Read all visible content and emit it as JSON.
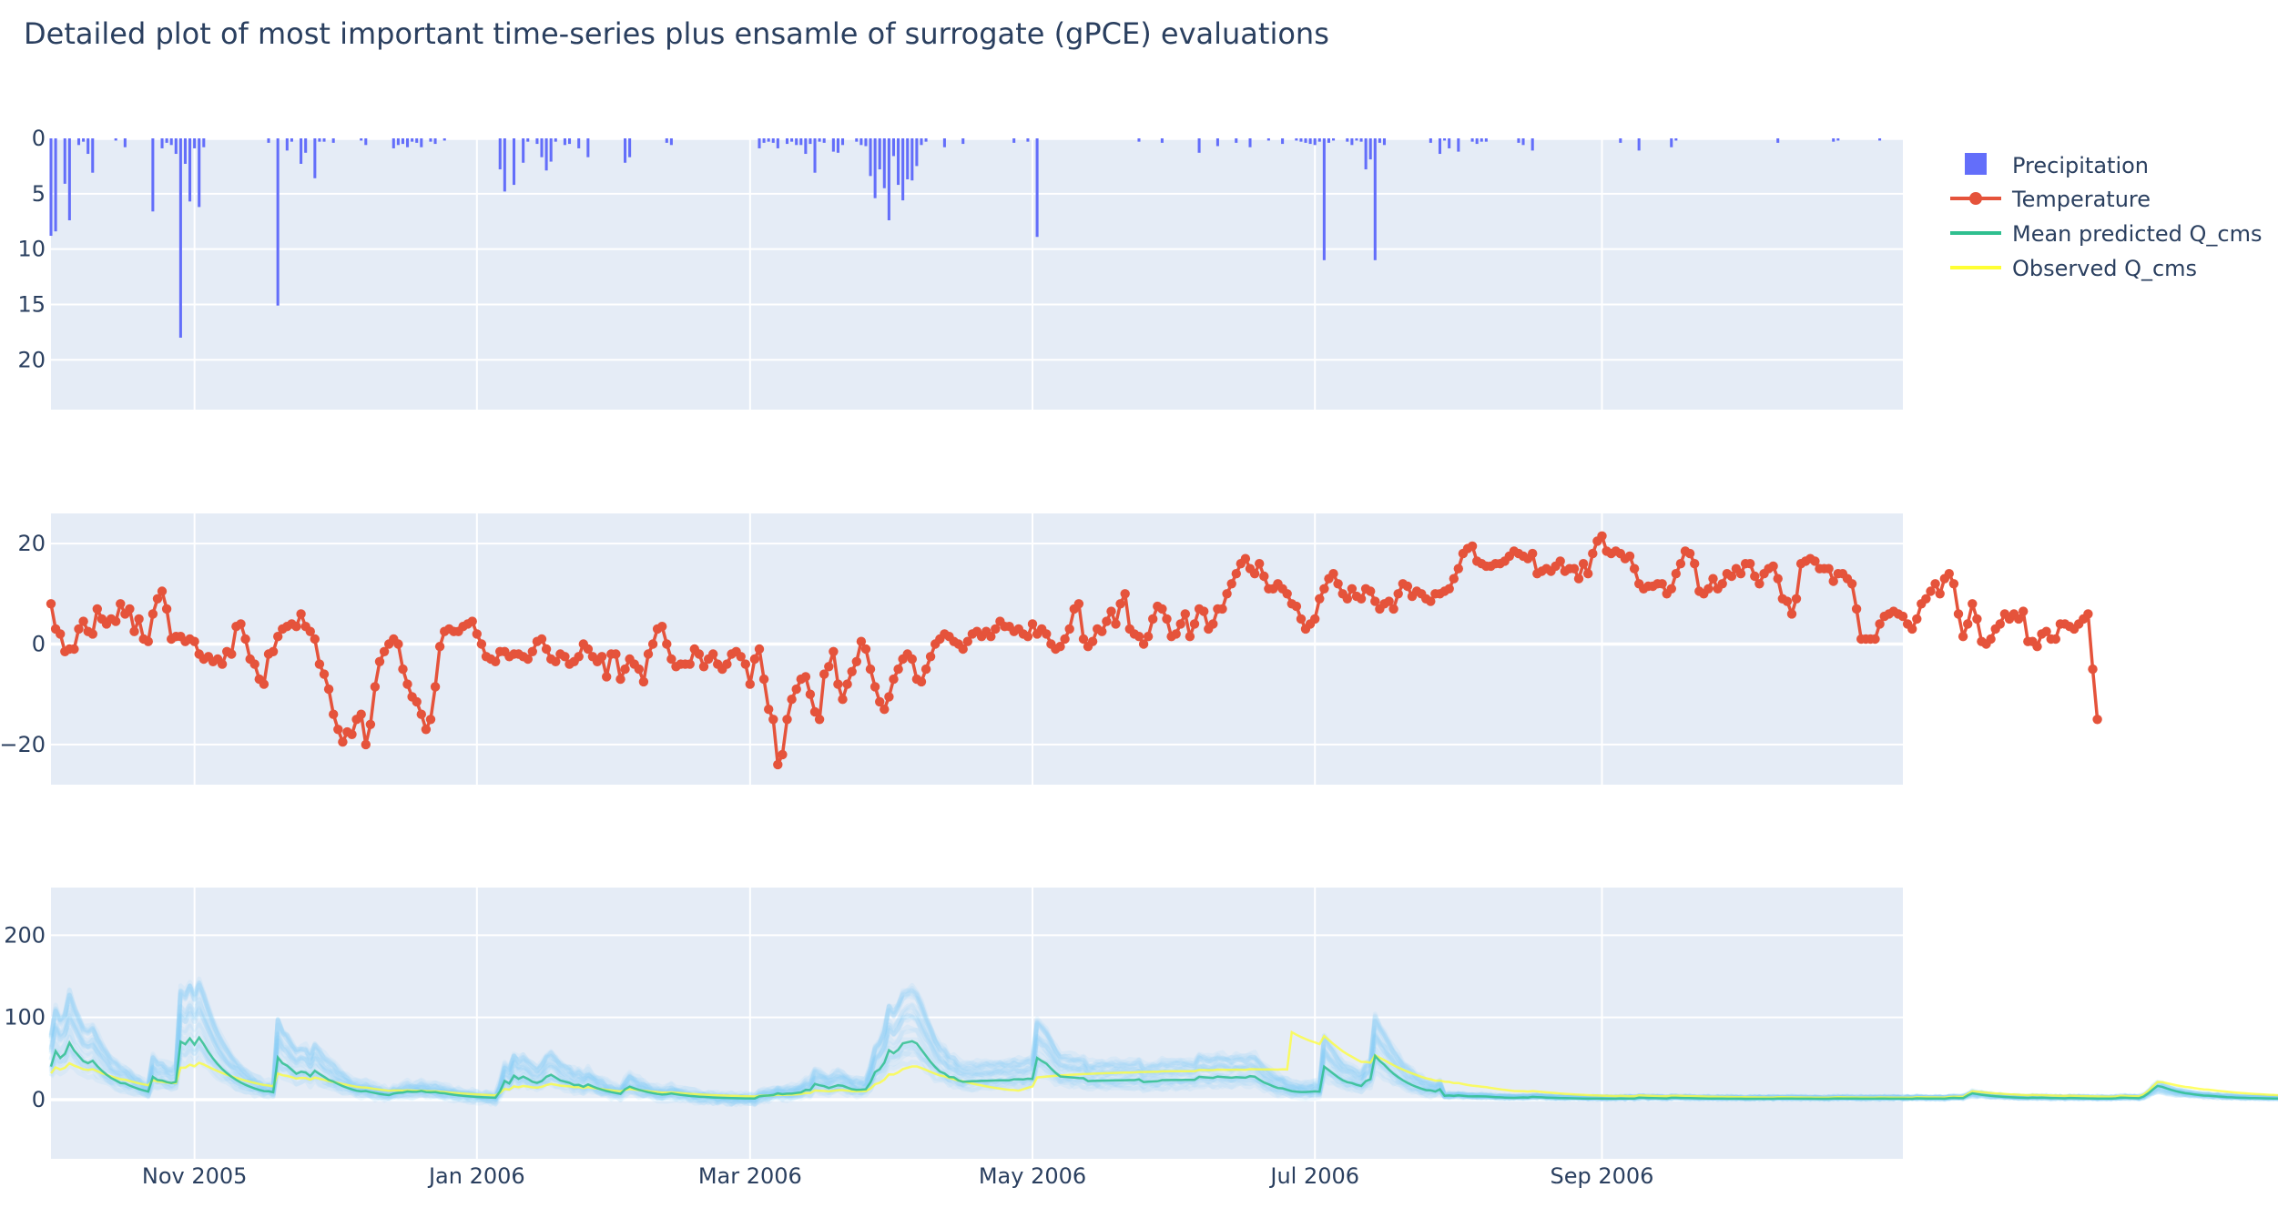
{
  "title": "Detailed plot of most important time-series plus ensamle of surrogate (gPCE) evaluations",
  "legend": {
    "placement": "top-right",
    "items": [
      {
        "name": "Precipitation",
        "symbol": "square",
        "color": "#636efa"
      },
      {
        "name": "Temperature",
        "symbol": "line-marker",
        "color": "#e5533b"
      },
      {
        "name": "Mean predicted Q_cms",
        "symbol": "line",
        "color": "#2fbf8f"
      },
      {
        "name": "Observed Q_cms",
        "symbol": "line",
        "color": "#ffff33"
      }
    ]
  },
  "colors": {
    "background": "#e5ecf6",
    "precipitation": "#636efa",
    "temperature": "#e5533b",
    "ensemble": "#87cefa",
    "mean_predicted": "#2fbf8f",
    "observed": "#ffff33"
  },
  "chart_data": [
    {
      "type": "bar",
      "name": "Precipitation",
      "start_date": "2005-10-01",
      "step_days": 1,
      "y_reversed": true,
      "ylim": [
        0,
        24.5
      ],
      "yticks": [
        0,
        5,
        10,
        15,
        20
      ],
      "values": [
        8.8,
        8.4,
        0,
        4.1,
        7.4,
        0,
        0.6,
        0.3,
        1.4,
        3.1,
        0,
        0,
        0,
        0,
        0.2,
        0,
        0.8,
        0,
        0,
        0,
        0,
        0,
        6.6,
        0,
        0.9,
        0.4,
        0.6,
        1.4,
        18,
        2.3,
        5.7,
        0.9,
        6.2,
        0.8,
        0,
        0,
        0,
        0,
        0,
        0,
        0,
        0,
        0,
        0,
        0,
        0,
        0,
        0.4,
        0,
        15.1,
        0,
        1.1,
        0.3,
        0,
        2.3,
        1.3,
        0,
        3.6,
        0.3,
        0.3,
        0,
        0.4,
        0,
        0,
        0,
        0,
        0,
        0.2,
        0.6,
        0,
        0,
        0,
        0,
        0,
        0.9,
        0.6,
        0.5,
        0.8,
        0.3,
        0.4,
        0.8,
        0,
        0.3,
        0.5,
        0,
        0.2,
        0,
        0,
        0,
        0,
        0,
        0,
        0,
        0,
        0,
        0,
        0,
        2.8,
        4.8,
        0,
        4.2,
        0,
        2.2,
        0.3,
        0,
        0.5,
        1.7,
        2.9,
        2.1,
        0.3,
        0,
        0.6,
        0.5,
        0,
        0.9,
        0,
        1.7,
        0,
        0,
        0,
        0,
        0,
        0,
        0,
        2.2,
        1.7,
        0,
        0,
        0,
        0,
        0,
        0,
        0,
        0.4,
        0.6,
        0,
        0,
        0,
        0,
        0,
        0,
        0,
        0,
        0,
        0,
        0,
        0,
        0,
        0,
        0,
        0,
        0,
        0,
        0.9,
        0.4,
        0.3,
        0.4,
        0.9,
        0,
        0.5,
        0.3,
        0.6,
        0.6,
        1.4,
        0.5,
        3.1,
        0.3,
        0.4,
        0,
        1.2,
        1.3,
        0.6,
        0,
        0,
        0.3,
        0.6,
        0.7,
        3.4,
        5.4,
        2.8,
        4.5,
        7.4,
        1.6,
        4.2,
        5.6,
        3.7,
        3.8,
        2.5,
        0.6,
        0.3,
        0,
        0,
        0,
        0.8,
        0,
        0,
        0,
        0.5,
        0,
        0,
        0,
        0,
        0,
        0,
        0,
        0,
        0,
        0,
        0.4,
        0,
        0,
        0.3,
        0,
        8.9,
        0,
        0,
        0,
        0,
        0,
        0,
        0,
        0,
        0,
        0,
        0,
        0,
        0,
        0,
        0,
        0,
        0,
        0,
        0,
        0,
        0,
        0.3,
        0,
        0,
        0,
        0,
        0.4,
        0,
        0,
        0,
        0,
        0,
        0,
        0,
        1.3,
        0,
        0,
        0,
        0.7,
        0,
        0,
        0,
        0.4,
        0,
        0,
        0.8,
        0,
        0,
        0,
        0.2,
        0,
        0,
        0.5,
        0,
        0,
        0.2,
        0.3,
        0.4,
        0.5,
        0.6,
        0.3,
        11,
        0.4,
        0.2,
        0,
        0,
        0.3,
        0.6,
        0.2,
        0.3,
        2.8,
        1.9,
        11,
        0.4,
        0.6,
        0,
        0,
        0,
        0,
        0,
        0,
        0,
        0,
        0,
        0.4,
        0,
        1.4,
        0.2,
        0.9,
        0,
        1.2,
        0,
        0,
        0.3,
        0.5,
        0.3,
        0.3,
        0,
        0,
        0,
        0,
        0,
        0,
        0.4,
        0.6,
        0,
        1.1,
        0,
        0,
        0,
        0,
        0,
        0,
        0,
        0,
        0,
        0,
        0,
        0,
        0,
        0,
        0,
        0,
        0,
        0,
        0.4,
        0,
        0,
        0,
        1.1,
        0,
        0,
        0,
        0,
        0,
        0,
        0.8,
        0.2,
        0,
        0,
        0,
        0,
        0,
        0,
        0,
        0,
        0,
        0,
        0,
        0,
        0,
        0,
        0,
        0,
        0,
        0,
        0,
        0,
        0,
        0.4,
        0,
        0,
        0,
        0,
        0,
        0,
        0,
        0,
        0,
        0,
        0,
        0.3,
        0.2,
        0,
        0,
        0,
        0,
        0,
        0,
        0,
        0,
        0.2,
        0,
        0,
        0,
        0,
        0,
        0,
        0,
        0.5,
        0,
        0,
        0,
        0,
        0,
        0,
        0.7,
        0.4,
        0,
        0,
        3.3,
        3.2,
        0,
        0,
        0,
        0,
        0,
        0,
        0,
        0,
        0,
        0,
        0,
        0,
        0.5,
        0,
        0.3,
        0,
        0,
        0,
        0,
        0,
        0.5,
        0,
        0,
        0,
        0,
        0,
        0,
        0,
        0,
        0,
        0.4,
        0.9,
        0,
        0,
        0,
        0,
        2.2,
        4.1,
        5.6,
        5.9,
        1.1,
        0,
        0,
        0,
        0,
        0,
        0.3,
        0,
        0,
        0,
        0.5,
        0,
        0,
        0,
        0,
        0,
        0,
        0,
        0,
        0,
        0,
        0,
        0,
        0,
        0,
        0,
        0,
        0,
        0,
        0,
        0,
        0,
        0,
        0,
        0,
        0,
        0,
        0,
        0,
        0,
        0,
        1.4,
        0,
        0,
        0,
        0,
        0,
        0,
        0,
        0,
        0,
        0,
        0,
        0,
        0,
        0,
        0,
        0,
        11.7,
        3.7,
        0,
        0,
        0,
        0,
        0,
        0,
        0,
        0,
        0,
        0,
        0,
        0,
        0,
        0,
        0,
        0,
        0,
        0,
        0,
        0.3,
        0,
        0,
        0,
        0,
        0,
        0,
        0,
        0,
        0,
        0,
        0,
        0,
        0,
        0,
        0,
        0,
        0,
        0,
        0.6,
        0,
        0,
        0,
        0,
        0,
        0,
        0,
        0,
        0,
        0,
        0,
        0,
        0,
        0,
        0,
        0,
        0,
        0,
        0,
        0,
        0,
        0,
        0,
        0,
        0,
        0,
        0,
        0,
        0,
        0,
        0.5,
        0.5,
        0.5,
        0.2,
        0.3,
        0.6,
        0.3,
        0.5,
        0.5,
        0,
        0,
        0,
        0,
        0,
        0,
        0.9,
        0,
        0,
        0,
        0,
        0,
        0,
        0,
        0,
        0,
        0,
        0,
        0,
        0,
        0,
        0,
        0,
        0,
        0,
        0,
        0,
        0,
        0,
        0,
        0,
        0,
        0,
        0,
        0,
        0,
        0,
        0,
        0,
        0,
        0,
        0,
        0,
        0,
        0,
        0,
        0,
        0,
        0,
        0,
        0,
        0,
        0,
        0,
        0,
        0,
        0,
        0,
        0,
        0,
        0,
        0,
        0,
        0,
        0,
        0,
        0,
        0,
        0,
        0,
        0,
        0,
        0,
        0,
        0,
        0,
        0,
        0,
        0,
        0,
        0,
        0,
        0,
        0,
        0,
        0,
        0,
        0,
        0,
        0,
        0,
        0,
        0,
        0,
        0,
        0,
        0,
        0,
        0,
        0,
        0,
        0,
        0,
        0,
        0,
        0,
        0,
        0,
        0,
        0,
        0,
        0,
        0,
        0,
        0,
        0,
        0,
        0,
        0,
        0,
        0,
        0,
        0,
        0,
        0,
        0,
        0,
        0,
        0,
        0,
        0,
        0,
        0,
        0,
        0,
        0,
        0,
        0,
        0,
        0,
        0,
        0,
        0,
        0,
        0,
        0,
        0,
        0,
        0,
        0,
        0,
        0,
        0,
        0,
        0,
        0,
        0,
        0,
        0,
        0,
        0,
        0,
        0,
        0,
        0,
        0,
        0,
        0,
        0,
        0,
        0,
        0,
        0,
        0,
        0,
        0,
        0,
        0,
        0,
        0,
        0,
        0,
        0,
        0,
        0,
        0,
        0,
        0,
        0,
        0,
        0,
        0,
        0,
        0,
        0,
        0,
        0,
        0,
        0,
        0,
        0,
        0,
        0,
        0,
        0,
        0,
        0,
        0,
        0,
        0,
        0,
        0,
        0,
        0,
        0,
        0,
        0,
        0,
        0,
        0,
        0,
        0,
        0,
        0,
        0,
        0,
        0,
        0,
        0,
        0,
        0,
        0,
        0,
        0,
        0,
        0,
        0,
        0,
        0,
        0,
        0,
        0,
        0,
        0,
        0,
        0,
        0,
        0,
        0,
        0,
        0,
        0,
        0,
        0,
        0,
        0,
        0,
        0,
        0,
        0,
        0,
        0,
        0,
        0,
        0,
        0,
        0,
        0,
        0,
        0,
        0,
        0,
        0,
        0,
        0,
        0,
        0,
        0,
        0,
        0,
        0,
        0,
        0,
        0,
        0,
        0,
        0,
        0,
        0,
        0,
        0,
        0,
        0,
        0,
        0,
        0,
        0,
        0,
        0,
        0,
        0,
        0,
        0,
        0,
        0,
        0,
        0,
        0,
        0,
        0
      ]
    },
    {
      "type": "line",
      "name": "Temperature",
      "start_date": "2005-10-01",
      "step_days": 1,
      "ylim": [
        -28,
        26
      ],
      "yticks": [
        -20,
        0,
        20
      ],
      "values": [
        8,
        3,
        2,
        -1.5,
        -1,
        -1,
        3,
        4.5,
        2.5,
        2,
        7,
        5,
        4,
        5,
        4.5,
        8,
        6,
        7,
        2.5,
        5,
        1,
        0.5,
        6,
        9,
        10.5,
        7,
        1,
        1.5,
        1.5,
        0.5,
        1,
        0.5,
        -2,
        -3,
        -2.5,
        -3.5,
        -3,
        -4,
        -1.5,
        -2,
        3.5,
        4,
        1,
        -3,
        -4,
        -7,
        -8,
        -2,
        -1.5,
        1.5,
        3,
        3.5,
        4,
        3.5,
        6,
        3.5,
        2.5,
        1,
        -4,
        -6,
        -9,
        -14,
        -17,
        -19.5,
        -17.5,
        -18,
        -15,
        -14,
        -20,
        -16,
        -8.5,
        -3.5,
        -1.5,
        0,
        1,
        0,
        -5,
        -8,
        -10.5,
        -11.5,
        -14,
        -17,
        -15,
        -8.5,
        -0.5,
        2.5,
        3,
        2.5,
        2.5,
        3.5,
        4,
        4.5,
        2,
        0,
        -2.5,
        -3,
        -3.5,
        -1.5,
        -1.5,
        -2.5,
        -2,
        -2,
        -2.5,
        -3,
        -1.5,
        0.5,
        1,
        -1,
        -3,
        -3.5,
        -2,
        -2.5,
        -4,
        -3.5,
        -2.5,
        0,
        -1,
        -2.5,
        -3.5,
        -2.5,
        -6.5,
        -2,
        -2,
        -7,
        -5,
        -3,
        -4,
        -5,
        -7.5,
        -2,
        0,
        3,
        3.5,
        0,
        -3,
        -4.5,
        -4,
        -4,
        -4,
        -1,
        -2,
        -4.5,
        -3,
        -2,
        -4,
        -5,
        -4,
        -2,
        -1.5,
        -2.5,
        -4,
        -8,
        -3,
        -1,
        -7,
        -13,
        -15,
        -24,
        -22,
        -15,
        -11,
        -9,
        -7,
        -6.5,
        -10,
        -13.5,
        -15,
        -6,
        -4.5,
        -1.5,
        -8,
        -11,
        -8,
        -5.5,
        -3.5,
        0.5,
        -1,
        -5,
        -8.5,
        -11.5,
        -13,
        -10.5,
        -7,
        -5,
        -3,
        -2,
        -3,
        -7,
        -7.5,
        -5,
        -2.5,
        0,
        1,
        2,
        1.5,
        0.5,
        0,
        -1,
        0.5,
        2,
        2.5,
        1.5,
        2.5,
        1.5,
        3,
        4.5,
        3.5,
        3.5,
        2.5,
        3,
        2,
        1.5,
        4,
        2,
        3,
        2,
        0,
        -1,
        -0.5,
        1,
        3,
        7,
        8,
        1,
        -0.5,
        0.5,
        3,
        2.5,
        4.5,
        6.5,
        4,
        8,
        10,
        3,
        2,
        1.5,
        0,
        1.5,
        5,
        7.5,
        7,
        5,
        1.5,
        2,
        4,
        6,
        1.5,
        4,
        7,
        6.5,
        3,
        4,
        7,
        7,
        10,
        12,
        14,
        16,
        17,
        15,
        14,
        16,
        13.5,
        11,
        11,
        12,
        11,
        10,
        8,
        7.5,
        5,
        3,
        4,
        5,
        9,
        11,
        13,
        14,
        12,
        10,
        9,
        11,
        9.5,
        9,
        11,
        10.5,
        8.5,
        7,
        8,
        8.5,
        7,
        10,
        12,
        11.5,
        9.5,
        10.5,
        10,
        9,
        8.5,
        10,
        10,
        10.5,
        11,
        13,
        15,
        18,
        19,
        19.5,
        16.5,
        16,
        15.5,
        15.5,
        16,
        16,
        16.5,
        17.5,
        18.5,
        18,
        17.5,
        17,
        18,
        14,
        14.5,
        15,
        14.5,
        15.5,
        16.5,
        14.5,
        15,
        15,
        13,
        16,
        14,
        18,
        20.5,
        21.5,
        18.5,
        18,
        18.5,
        18,
        17,
        17.5,
        15,
        12,
        11,
        11.5,
        11.5,
        12,
        12,
        10,
        11,
        14,
        16,
        18.5,
        18,
        16,
        10.5,
        10,
        11,
        13,
        11,
        12,
        14,
        13.5,
        15,
        14,
        16,
        16,
        13.5,
        12,
        14,
        15,
        15.5,
        13,
        9,
        8.5,
        6,
        9,
        16,
        16.5,
        17,
        16.5,
        15,
        15,
        15,
        12.5,
        14,
        14,
        13,
        12,
        7,
        1,
        1,
        1,
        1,
        4,
        5.5,
        6,
        6.5,
        6,
        5.5,
        4,
        3,
        5,
        8,
        9,
        10.5,
        12,
        10,
        13,
        14,
        12,
        6,
        1.5,
        4,
        8,
        5,
        0.5,
        0,
        1,
        3,
        4,
        6,
        5,
        6,
        5,
        6.5,
        0.5,
        0.5,
        -0.5,
        2,
        2.5,
        1,
        1,
        4,
        4,
        3.5,
        3,
        4,
        5,
        6,
        -5,
        -15
      ]
    },
    {
      "type": "line",
      "name": "Q_cms",
      "start_date": "2005-10-01",
      "step_days": 1,
      "ylim": [
        -72,
        258
      ],
      "yticks": [
        0,
        100,
        200
      ],
      "series": [
        {
          "name": "Mean predicted Q_cms"
        },
        {
          "name": "Observed Q_cms"
        }
      ],
      "ensemble": {
        "count": 24,
        "opacity": 0.12
      }
    }
  ],
  "x_axis": {
    "start_date": "2005-10-01",
    "end_date": "2006-11-05",
    "tick_labels": [
      "Nov 2005",
      "Jan 2006",
      "Mar 2006",
      "May 2006",
      "Jul 2006",
      "Sep 2006"
    ],
    "tick_dates": [
      "2005-11-01",
      "2006-01-01",
      "2006-03-01",
      "2006-05-01",
      "2006-07-01",
      "2006-09-01"
    ]
  }
}
